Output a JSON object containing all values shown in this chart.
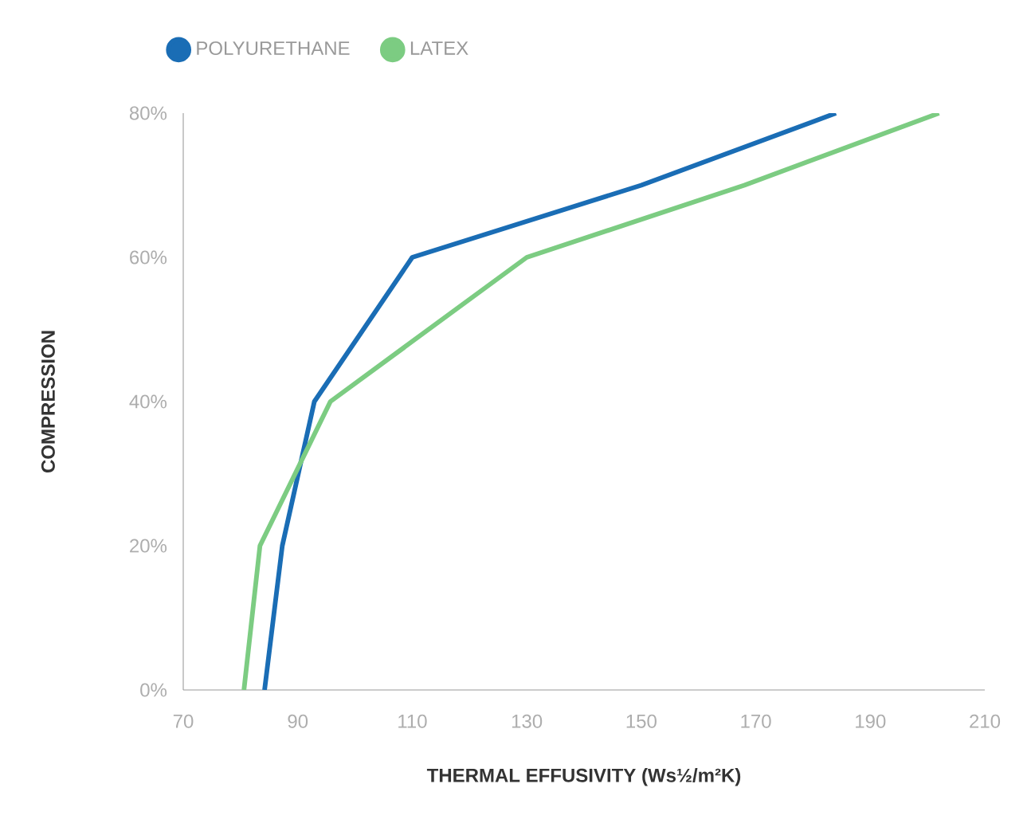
{
  "chart_data": {
    "type": "line",
    "xlabel": "THERMAL EFFUSIVITY (Ws½/m²K)",
    "ylabel": "COMPRESSION",
    "series": [
      {
        "name": "POLYURETHANE",
        "color": "#1a6db5",
        "x": [
          84.2,
          87.3,
          92.9,
          110,
          150,
          184
        ],
        "values": [
          0,
          20,
          40,
          60,
          70,
          80
        ]
      },
      {
        "name": "LATEX",
        "color": "#7ccc82",
        "x": [
          80.6,
          83.4,
          95.7,
          130,
          168,
          202
        ],
        "values": [
          0,
          20,
          40,
          60,
          70,
          80
        ]
      }
    ],
    "xlim": [
      70,
      210
    ],
    "xticks": [
      70,
      90,
      110,
      130,
      150,
      170,
      190,
      210
    ],
    "ylim": [
      0,
      80
    ],
    "yticks": [
      {
        "value": 0,
        "label": "0%"
      },
      {
        "value": 20,
        "label": "20%"
      },
      {
        "value": 40,
        "label": "40%"
      },
      {
        "value": 60,
        "label": "60%"
      },
      {
        "value": 80,
        "label": "80%"
      }
    ],
    "legend": "top left",
    "grid": false,
    "marker": "none",
    "line_style": "solid"
  }
}
